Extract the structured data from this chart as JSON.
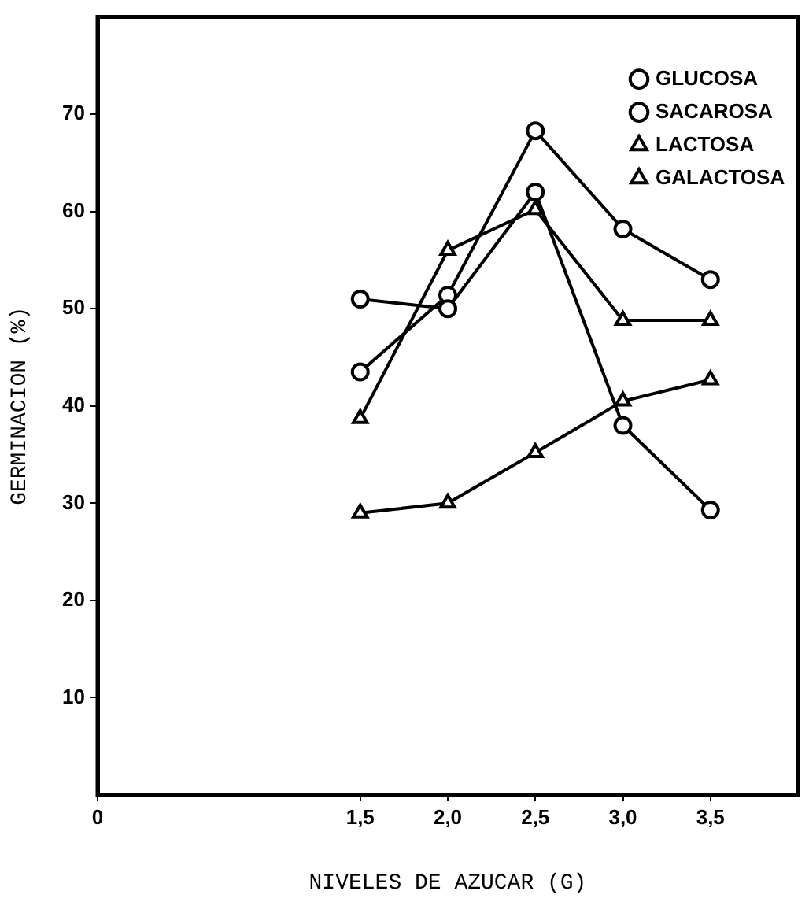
{
  "chart_data": {
    "type": "line",
    "xlabel": "NIVELES DE AZUCAR (G)",
    "ylabel": "GERMINACION (%)",
    "x": [
      1.5,
      2.0,
      2.5,
      3.0,
      3.5
    ],
    "xlim": [
      0,
      4.0
    ],
    "xticks": [
      0,
      {
        "value": 1.5,
        "label": "1,5"
      },
      {
        "value": 2.0,
        "label": "2,0"
      },
      {
        "value": 2.5,
        "label": "2,5"
      },
      {
        "value": 3.0,
        "label": "3,0"
      },
      {
        "value": 3.5,
        "label": "3,5"
      }
    ],
    "ylim": [
      0,
      80
    ],
    "yticks": [
      10,
      20,
      30,
      40,
      50,
      60,
      70
    ],
    "grid": false,
    "legend": "top right",
    "line_style": "solid",
    "series": [
      {
        "name": "GLUCOSA",
        "color": "#000000",
        "marker": "circle",
        "values": [
          51,
          50,
          62,
          38,
          29.3
        ]
      },
      {
        "name": "SACAROSA",
        "color": "#000000",
        "marker": "circle",
        "values": [
          43.5,
          51.4,
          68.3,
          58.2,
          53
        ]
      },
      {
        "name": "LACTOSA",
        "color": "#000000",
        "marker": "triangle",
        "values": [
          29,
          30,
          35.2,
          40.5,
          42.7
        ]
      },
      {
        "name": "GALACTOSA",
        "color": "#000000",
        "marker": "triangle",
        "values": [
          38.7,
          56,
          60.2,
          48.8,
          48.8
        ]
      }
    ]
  }
}
